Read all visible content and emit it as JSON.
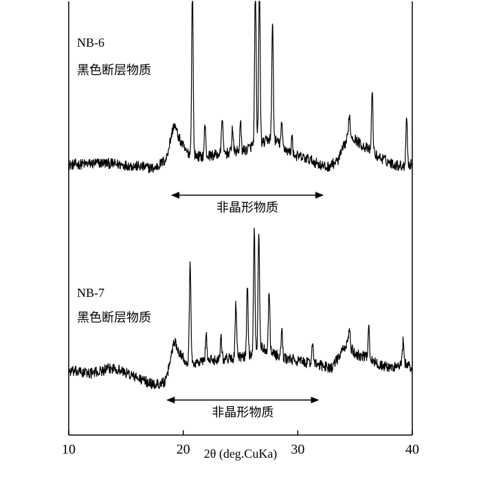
{
  "chart_data": {
    "type": "line",
    "xlabel": "2θ (deg.CuKa)",
    "xlim": [
      10,
      40
    ],
    "xticks": [
      10,
      20,
      30,
      40
    ],
    "tick_labels": [
      "10",
      "20",
      "30",
      "40"
    ],
    "series": [
      {
        "name": "NB-6",
        "description": "黑色断层物质",
        "baseline": 0,
        "noise": 5,
        "x": [
          10.0,
          13.0,
          16.0,
          17.5,
          18.5,
          19.2,
          19.6,
          20.2,
          20.8,
          21.5,
          22.5,
          24.0,
          25.5,
          26.2,
          26.6,
          27.0,
          27.7,
          28.5,
          29.5,
          31.0,
          32.5,
          33.5,
          34.5,
          35.5,
          36.2,
          37.0,
          38.5,
          39.5,
          40.0
        ],
        "values": [
          0,
          3,
          -2,
          -5,
          8,
          60,
          40,
          20,
          15,
          12,
          14,
          18,
          22,
          30,
          35,
          32,
          40,
          30,
          15,
          8,
          -4,
          6,
          45,
          30,
          22,
          12,
          0,
          -2,
          2
        ],
        "peaks": [
          {
            "x": 20.8,
            "h": 250
          },
          {
            "x": 21.9,
            "h": 45
          },
          {
            "x": 23.4,
            "h": 55
          },
          {
            "x": 24.3,
            "h": 35
          },
          {
            "x": 25.0,
            "h": 40
          },
          {
            "x": 26.3,
            "h": 240
          },
          {
            "x": 26.65,
            "h": 240
          },
          {
            "x": 27.8,
            "h": 170
          },
          {
            "x": 28.6,
            "h": 30
          },
          {
            "x": 29.5,
            "h": 25
          },
          {
            "x": 34.5,
            "h": 30
          },
          {
            "x": 36.5,
            "h": 90
          },
          {
            "x": 39.5,
            "h": 75
          }
        ]
      },
      {
        "name": "NB-7",
        "description": "黑色断层物质",
        "baseline": 0,
        "noise": 5,
        "x": [
          10.0,
          12.0,
          14.0,
          16.0,
          17.5,
          18.5,
          19.2,
          19.6,
          20.2,
          21.0,
          22.0,
          23.5,
          25.0,
          26.0,
          26.8,
          27.5,
          28.5,
          30.0,
          31.5,
          33.0,
          34.3,
          35.0,
          36.0,
          37.0,
          38.0,
          39.5,
          40.0
        ],
        "values": [
          0,
          -3,
          5,
          -10,
          -20,
          -15,
          45,
          30,
          15,
          12,
          15,
          18,
          20,
          25,
          35,
          30,
          20,
          15,
          10,
          5,
          40,
          25,
          20,
          10,
          5,
          10,
          5
        ],
        "peaks": [
          {
            "x": 20.6,
            "h": 150
          },
          {
            "x": 22.0,
            "h": 40
          },
          {
            "x": 23.3,
            "h": 35
          },
          {
            "x": 24.6,
            "h": 80
          },
          {
            "x": 25.6,
            "h": 100
          },
          {
            "x": 26.2,
            "h": 180
          },
          {
            "x": 26.6,
            "h": 170
          },
          {
            "x": 27.5,
            "h": 90
          },
          {
            "x": 28.6,
            "h": 40
          },
          {
            "x": 31.3,
            "h": 35
          },
          {
            "x": 34.5,
            "h": 30
          },
          {
            "x": 36.2,
            "h": 50
          },
          {
            "x": 39.2,
            "h": 35
          }
        ]
      }
    ],
    "annotations": [
      {
        "label": "非晶形物质",
        "x_from": 19,
        "x_to": 32.2,
        "series": "NB-6"
      },
      {
        "label": "非晶形物质",
        "x_from": 18.6,
        "x_to": 31.8,
        "series": "NB-7"
      }
    ],
    "grid": false,
    "legend": "none"
  }
}
